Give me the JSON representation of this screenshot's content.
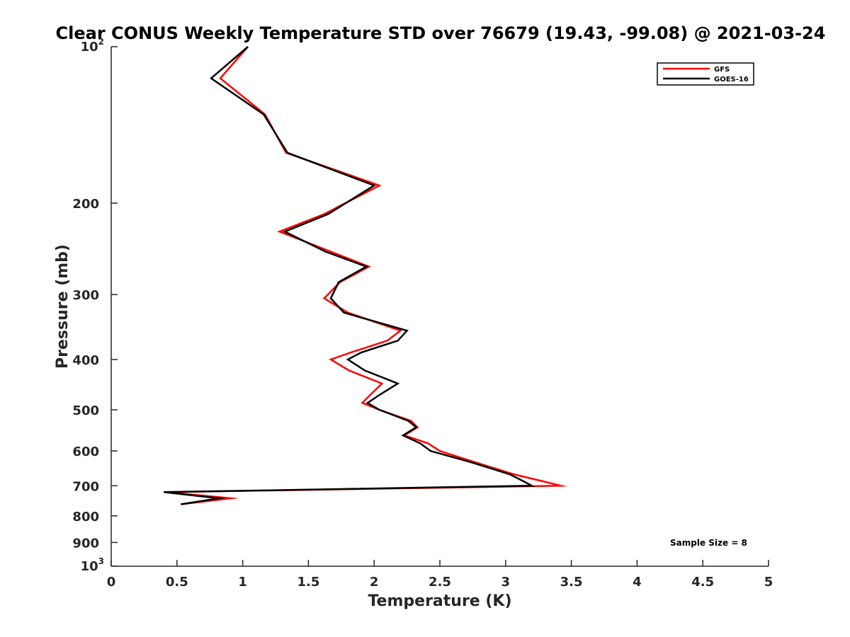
{
  "chart_data": {
    "type": "line",
    "title": "Clear CONUS Weekly Temperature STD over 76679 (19.43, -99.08) @ 2021-03-24",
    "xlabel": "Temperature (K)",
    "ylabel": "Pressure (mb)",
    "xlim": [
      0,
      5
    ],
    "ylim": [
      100,
      1000
    ],
    "y_scale": "log",
    "y_reversed": true,
    "grid": false,
    "legend_position": "top-right",
    "x_ticks": [
      {
        "value": 0,
        "label": "0"
      },
      {
        "value": 0.5,
        "label": "0.5"
      },
      {
        "value": 1,
        "label": "1"
      },
      {
        "value": 1.5,
        "label": "1.5"
      },
      {
        "value": 2,
        "label": "2"
      },
      {
        "value": 2.5,
        "label": "2.5"
      },
      {
        "value": 3,
        "label": "3"
      },
      {
        "value": 3.5,
        "label": "3.5"
      },
      {
        "value": 4,
        "label": "4"
      },
      {
        "value": 4.5,
        "label": "4.5"
      },
      {
        "value": 5,
        "label": "5"
      }
    ],
    "y_ticks": [
      {
        "value": 100,
        "base": "10",
        "exp": "2"
      },
      {
        "value": 200,
        "label": "200"
      },
      {
        "value": 300,
        "label": "300"
      },
      {
        "value": 400,
        "label": "400"
      },
      {
        "value": 500,
        "label": "500"
      },
      {
        "value": 600,
        "label": "600"
      },
      {
        "value": 700,
        "label": "700"
      },
      {
        "value": 800,
        "label": "800"
      },
      {
        "value": 900,
        "label": "900"
      },
      {
        "value": 1000,
        "base": "10",
        "exp": "3"
      }
    ],
    "series": [
      {
        "name": "GFS",
        "color": "#ff0000",
        "points": [
          [
            1.04,
            100
          ],
          [
            0.83,
            115
          ],
          [
            1.17,
            135
          ],
          [
            1.33,
            160
          ],
          [
            2.04,
            185
          ],
          [
            1.62,
            210
          ],
          [
            1.28,
            227
          ],
          [
            1.67,
            248
          ],
          [
            1.96,
            265
          ],
          [
            1.74,
            284
          ],
          [
            1.62,
            305
          ],
          [
            1.8,
            325
          ],
          [
            2.2,
            352
          ],
          [
            2.1,
            368
          ],
          [
            1.82,
            388
          ],
          [
            1.67,
            400
          ],
          [
            1.81,
            420
          ],
          [
            2.06,
            445
          ],
          [
            1.97,
            468
          ],
          [
            1.91,
            485
          ],
          [
            2.04,
            500
          ],
          [
            2.28,
            525
          ],
          [
            2.33,
            540
          ],
          [
            2.23,
            560
          ],
          [
            2.41,
            580
          ],
          [
            2.5,
            600
          ],
          [
            2.76,
            630
          ],
          [
            3.06,
            665
          ],
          [
            3.27,
            685
          ],
          [
            3.42,
            700
          ],
          [
            0.42,
            720
          ],
          [
            0.91,
            740
          ],
          [
            0.53,
            760
          ]
        ]
      },
      {
        "name": "GOES-16",
        "color": "#000000",
        "points": [
          [
            1.04,
            100
          ],
          [
            0.76,
            115
          ],
          [
            1.16,
            135
          ],
          [
            1.34,
            160
          ],
          [
            2.0,
            185
          ],
          [
            1.65,
            210
          ],
          [
            1.32,
            227
          ],
          [
            1.63,
            248
          ],
          [
            1.94,
            265
          ],
          [
            1.73,
            284
          ],
          [
            1.67,
            305
          ],
          [
            1.77,
            325
          ],
          [
            2.25,
            352
          ],
          [
            2.18,
            368
          ],
          [
            1.9,
            388
          ],
          [
            1.8,
            400
          ],
          [
            1.93,
            420
          ],
          [
            2.18,
            445
          ],
          [
            2.04,
            468
          ],
          [
            1.95,
            485
          ],
          [
            2.04,
            500
          ],
          [
            2.26,
            525
          ],
          [
            2.32,
            540
          ],
          [
            2.22,
            560
          ],
          [
            2.35,
            580
          ],
          [
            2.43,
            600
          ],
          [
            2.73,
            630
          ],
          [
            3.03,
            665
          ],
          [
            3.13,
            685
          ],
          [
            3.2,
            700
          ],
          [
            0.4,
            720
          ],
          [
            0.82,
            740
          ],
          [
            0.53,
            760
          ]
        ]
      }
    ],
    "annotations": [
      {
        "text": "Sample Size = 8",
        "position": "bottom-right"
      }
    ]
  }
}
